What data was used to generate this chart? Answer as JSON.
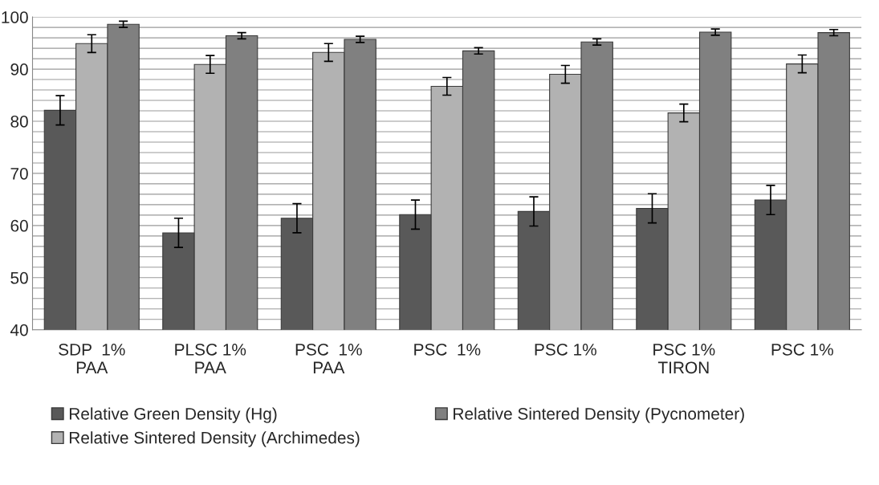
{
  "chart_data": {
    "type": "bar",
    "categories": [
      "SDP  1%\nPAA",
      "PLSC 1%\nPAA",
      "PSC  1%\nPAA",
      "PSC  1%",
      "PSC 1%",
      "PSC 1%\nTIRON",
      "PSC 1%"
    ],
    "series": [
      {
        "name": "Relative Green Density (Hg)",
        "color": "#595959",
        "values": [
          82.1,
          58.6,
          61.4,
          62.1,
          62.7,
          63.3,
          64.9
        ],
        "errors": [
          2.8,
          2.8,
          2.8,
          2.8,
          2.8,
          2.8,
          2.8
        ]
      },
      {
        "name": "Relative Sintered Density (Archimedes)",
        "color": "#b2b2b2",
        "values": [
          94.9,
          90.9,
          93.2,
          86.7,
          89.0,
          81.6,
          91.0
        ],
        "errors": [
          1.7,
          1.7,
          1.7,
          1.7,
          1.7,
          1.7,
          1.7
        ]
      },
      {
        "name": "Relative Sintered Density (Pycnometer)",
        "color": "#808080",
        "values": [
          98.6,
          96.4,
          95.7,
          93.5,
          95.2,
          97.1,
          97.0
        ],
        "errors": [
          0.6,
          0.6,
          0.6,
          0.6,
          0.6,
          0.6,
          0.6
        ]
      }
    ],
    "ylim": [
      40,
      100
    ],
    "yticks": [
      40,
      {
        "value": 42,
        "label": null
      },
      {
        "value": 44,
        "label": null
      },
      {
        "value": 46,
        "label": null
      },
      {
        "value": 48,
        "label": null
      },
      50,
      {
        "value": 52,
        "label": null
      },
      {
        "value": 54,
        "label": null
      },
      {
        "value": 56,
        "label": null
      },
      {
        "value": 58,
        "label": null
      },
      60,
      {
        "value": 62,
        "label": null
      },
      {
        "value": 64,
        "label": null
      },
      {
        "value": 66,
        "label": null
      },
      {
        "value": 68,
        "label": null
      },
      70,
      {
        "value": 72,
        "label": null
      },
      {
        "value": 74,
        "label": null
      },
      {
        "value": 76,
        "label": null
      },
      {
        "value": 78,
        "label": null
      },
      80,
      {
        "value": 82,
        "label": null
      },
      {
        "value": 84,
        "label": null
      },
      {
        "value": 86,
        "label": null
      },
      {
        "value": 88,
        "label": null
      },
      90,
      {
        "value": 92,
        "label": null
      },
      {
        "value": 94,
        "label": null
      },
      {
        "value": 96,
        "label": null
      },
      {
        "value": 98,
        "label": null
      },
      100
    ],
    "grid": "y",
    "legend": "bottom"
  }
}
